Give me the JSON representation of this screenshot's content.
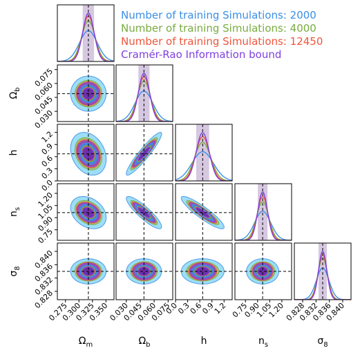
{
  "chart_data": {
    "type": "corner",
    "parameters": [
      {
        "name": "Omega_m",
        "label": "Ω",
        "sub": "m",
        "truth": 0.3175,
        "range": [
          0.26,
          0.365
        ],
        "ticks": [
          "0.275",
          "0.300",
          "0.325",
          "0.350"
        ],
        "tick_values": [
          0.275,
          0.3,
          0.325,
          0.35
        ]
      },
      {
        "name": "Omega_b",
        "label": "Ω",
        "sub": "b",
        "truth": 0.049,
        "range": [
          0.019,
          0.08
        ],
        "ticks": [
          "0.030",
          "0.045",
          "0.060",
          "0.075"
        ],
        "tick_values": [
          0.03,
          0.045,
          0.06,
          0.075
        ]
      },
      {
        "name": "h",
        "label": "h",
        "sub": "",
        "truth": 0.6711,
        "range": [
          0.0,
          1.4
        ],
        "ticks": [
          "0.0",
          "0.3",
          "0.6",
          "0.9",
          "1.2"
        ],
        "tick_values": [
          0.0,
          0.3,
          0.6,
          0.9,
          1.2
        ]
      },
      {
        "name": "n_s",
        "label": "n",
        "sub": "s",
        "truth": 0.9624,
        "range": [
          0.62,
          1.32
        ],
        "ticks": [
          "0.75",
          "0.90",
          "1.05",
          "1.20"
        ],
        "tick_values": [
          0.75,
          0.9,
          1.05,
          1.2
        ]
      },
      {
        "name": "sigma_8",
        "label": "σ",
        "sub": "8",
        "truth": 0.834,
        "range": [
          0.8255,
          0.8425
        ],
        "ticks": [
          "0.828",
          "0.832",
          "0.836",
          "0.840"
        ],
        "tick_values": [
          0.828,
          0.832,
          0.836,
          0.84
        ]
      }
    ],
    "series": [
      {
        "name": "Number of training Simulations: 2000",
        "color": "#3a8ee6",
        "fill": "#7fd3f5",
        "sigma": [
          0.0165,
          0.0095,
          0.265,
          0.1,
          0.0019
        ]
      },
      {
        "name": "Number of training Simulations: 4000",
        "color": "#77ac3f",
        "fill": "#9ec25a",
        "sigma": [
          0.0125,
          0.0072,
          0.2,
          0.075,
          0.00145
        ]
      },
      {
        "name": "Number of training Simulations: 12450",
        "color": "#f0553a",
        "fill": "#e06a48",
        "sigma": [
          0.0112,
          0.0065,
          0.175,
          0.066,
          0.00135
        ]
      },
      {
        "name": "Cramér-Rao Information bound",
        "color": "#7e3fe0",
        "fill": "#8a3fd1",
        "sigma": [
          0.0105,
          0.006,
          0.16,
          0.06,
          0.00125
        ]
      }
    ],
    "correlations": {
      "1-0": 0.0,
      "2-0": -0.25,
      "2-1": 0.93,
      "3-0": -0.3,
      "3-1": -0.88,
      "3-2": -0.9,
      "4-0": 0.0,
      "4-1": 0.0,
      "4-2": 0.0,
      "4-3": 0.0
    },
    "contour_levels_sigma": [
      1,
      2
    ],
    "truth_lines": "dashed black",
    "legend_placement": "top-right"
  }
}
